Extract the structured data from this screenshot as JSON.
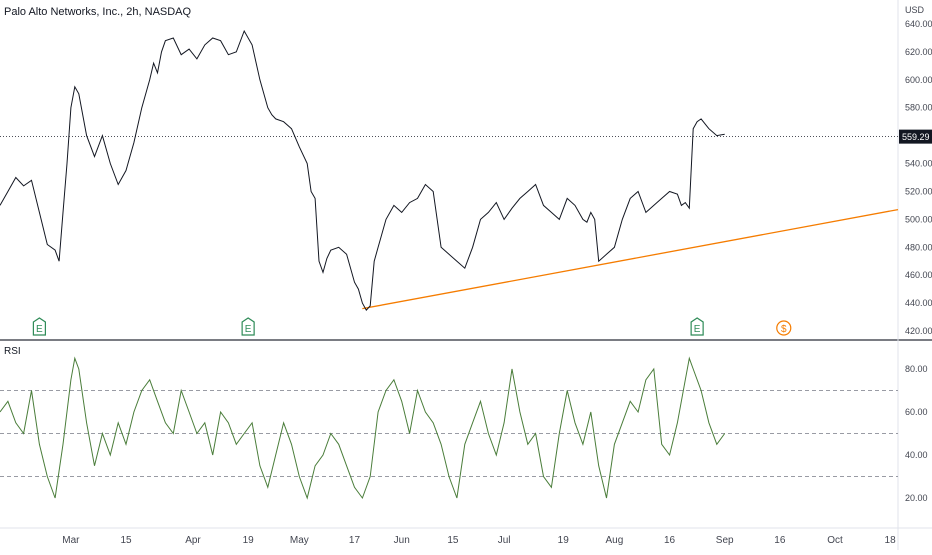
{
  "title": "Palo Alto Networks, Inc., 2h, NASDAQ",
  "currency": "USD",
  "price_badge": "559.29",
  "rsi_label": "RSI",
  "event_markers": [
    {
      "label": "E",
      "kind": "earnings",
      "color": "#2e8b57",
      "x_value": 10
    },
    {
      "label": "E",
      "kind": "earnings",
      "color": "#2e8b57",
      "x_value": 63
    },
    {
      "label": "E",
      "kind": "earnings",
      "color": "#2e8b57",
      "x_value": 177
    },
    {
      "label": "$",
      "kind": "dividend",
      "color": "#f57c00",
      "x_value": 199
    }
  ],
  "chart_data": [
    {
      "type": "line",
      "ylim": [
        420,
        650
      ],
      "yticks": [
        640,
        620,
        600,
        580,
        560,
        540,
        520,
        500,
        480,
        460,
        440,
        420
      ],
      "ytick_labels": [
        "640.00",
        "620.00",
        "600.00",
        "580.00",
        "560.00",
        "540.00",
        "520.00",
        "500.00",
        "480.00",
        "460.00",
        "440.00",
        "420.00"
      ],
      "x_tick_labels": [
        "Mar",
        "15",
        "Apr",
        "19",
        "May",
        "17",
        "Jun",
        "15",
        "Jul",
        "19",
        "Aug",
        "16",
        "Sep",
        "16",
        "Oct",
        "18"
      ],
      "x_tick_values": [
        18,
        32,
        49,
        63,
        76,
        90,
        102,
        115,
        128,
        143,
        156,
        170,
        184,
        198,
        212,
        226
      ],
      "xlim": [
        0,
        228
      ],
      "current_price": 559.29,
      "trendline": {
        "color": "#f57c00",
        "points": [
          [
            92,
            436
          ],
          [
            228,
            507
          ]
        ]
      },
      "series": [
        {
          "color": "#131722",
          "x": [
            0,
            2,
            4,
            6,
            8,
            10,
            12,
            14,
            15,
            16,
            17,
            18,
            19,
            20,
            22,
            24,
            26,
            28,
            30,
            32,
            34,
            36,
            38,
            39,
            40,
            41,
            42,
            44,
            46,
            48,
            50,
            52,
            54,
            56,
            58,
            60,
            62,
            64,
            66,
            68,
            69,
            70,
            72,
            74,
            76,
            78,
            79,
            80,
            81,
            82,
            83,
            84,
            86,
            88,
            90,
            91,
            92,
            93,
            94,
            95,
            96,
            98,
            100,
            102,
            104,
            106,
            108,
            110,
            112,
            114,
            116,
            118,
            120,
            122,
            124,
            126,
            128,
            130,
            132,
            134,
            136,
            138,
            140,
            142,
            144,
            146,
            148,
            149,
            150,
            151,
            152,
            154,
            156,
            158,
            160,
            162,
            164,
            166,
            168,
            170,
            172,
            173,
            174,
            175,
            176,
            177,
            178,
            180,
            182,
            184
          ],
          "values": [
            510,
            520,
            530,
            524,
            528,
            505,
            482,
            478,
            470,
            505,
            540,
            580,
            595,
            590,
            560,
            545,
            560,
            540,
            525,
            535,
            555,
            580,
            600,
            612,
            605,
            620,
            628,
            630,
            618,
            622,
            615,
            625,
            630,
            628,
            618,
            620,
            635,
            625,
            600,
            580,
            575,
            572,
            570,
            565,
            552,
            540,
            520,
            515,
            470,
            462,
            472,
            478,
            480,
            475,
            455,
            450,
            440,
            435,
            438,
            470,
            480,
            500,
            510,
            505,
            512,
            515,
            525,
            520,
            480,
            475,
            470,
            465,
            480,
            500,
            505,
            512,
            500,
            508,
            515,
            520,
            525,
            510,
            505,
            500,
            515,
            510,
            500,
            498,
            505,
            500,
            470,
            475,
            480,
            500,
            515,
            520,
            505,
            510,
            515,
            520,
            518,
            510,
            512,
            508,
            565,
            570,
            572,
            565,
            560,
            561
          ]
        }
      ]
    },
    {
      "type": "line",
      "title": "RSI",
      "ylim": [
        10,
        90
      ],
      "yticks": [
        80,
        60,
        40,
        20
      ],
      "ytick_labels": [
        "80.00",
        "60.00",
        "40.00",
        "20.00"
      ],
      "reference_lines": [
        70,
        50,
        30
      ],
      "xlim": [
        0,
        228
      ],
      "series": [
        {
          "color": "#4a7d3a",
          "x": [
            0,
            2,
            4,
            6,
            8,
            10,
            12,
            14,
            16,
            18,
            19,
            20,
            22,
            24,
            26,
            28,
            30,
            32,
            34,
            36,
            38,
            40,
            42,
            44,
            46,
            48,
            50,
            52,
            54,
            56,
            58,
            60,
            62,
            64,
            66,
            68,
            70,
            72,
            74,
            76,
            78,
            80,
            82,
            84,
            86,
            88,
            90,
            92,
            94,
            96,
            98,
            100,
            102,
            104,
            106,
            108,
            110,
            112,
            114,
            116,
            118,
            120,
            122,
            124,
            126,
            128,
            130,
            132,
            134,
            136,
            138,
            140,
            142,
            144,
            146,
            148,
            150,
            152,
            154,
            156,
            158,
            160,
            162,
            164,
            166,
            168,
            170,
            172,
            174,
            175,
            176,
            178,
            180,
            182,
            184
          ],
          "values": [
            60,
            65,
            55,
            50,
            70,
            45,
            30,
            20,
            45,
            75,
            85,
            80,
            55,
            35,
            50,
            40,
            55,
            45,
            60,
            70,
            75,
            65,
            55,
            50,
            70,
            60,
            50,
            55,
            40,
            60,
            55,
            45,
            50,
            55,
            35,
            25,
            40,
            55,
            45,
            30,
            20,
            35,
            40,
            50,
            45,
            35,
            25,
            20,
            30,
            60,
            70,
            75,
            65,
            50,
            70,
            60,
            55,
            45,
            30,
            20,
            45,
            55,
            65,
            50,
            40,
            55,
            80,
            60,
            45,
            50,
            30,
            25,
            50,
            70,
            55,
            45,
            60,
            35,
            20,
            45,
            55,
            65,
            60,
            75,
            80,
            45,
            40,
            55,
            75,
            85,
            80,
            70,
            55,
            45,
            50
          ]
        }
      ]
    }
  ]
}
